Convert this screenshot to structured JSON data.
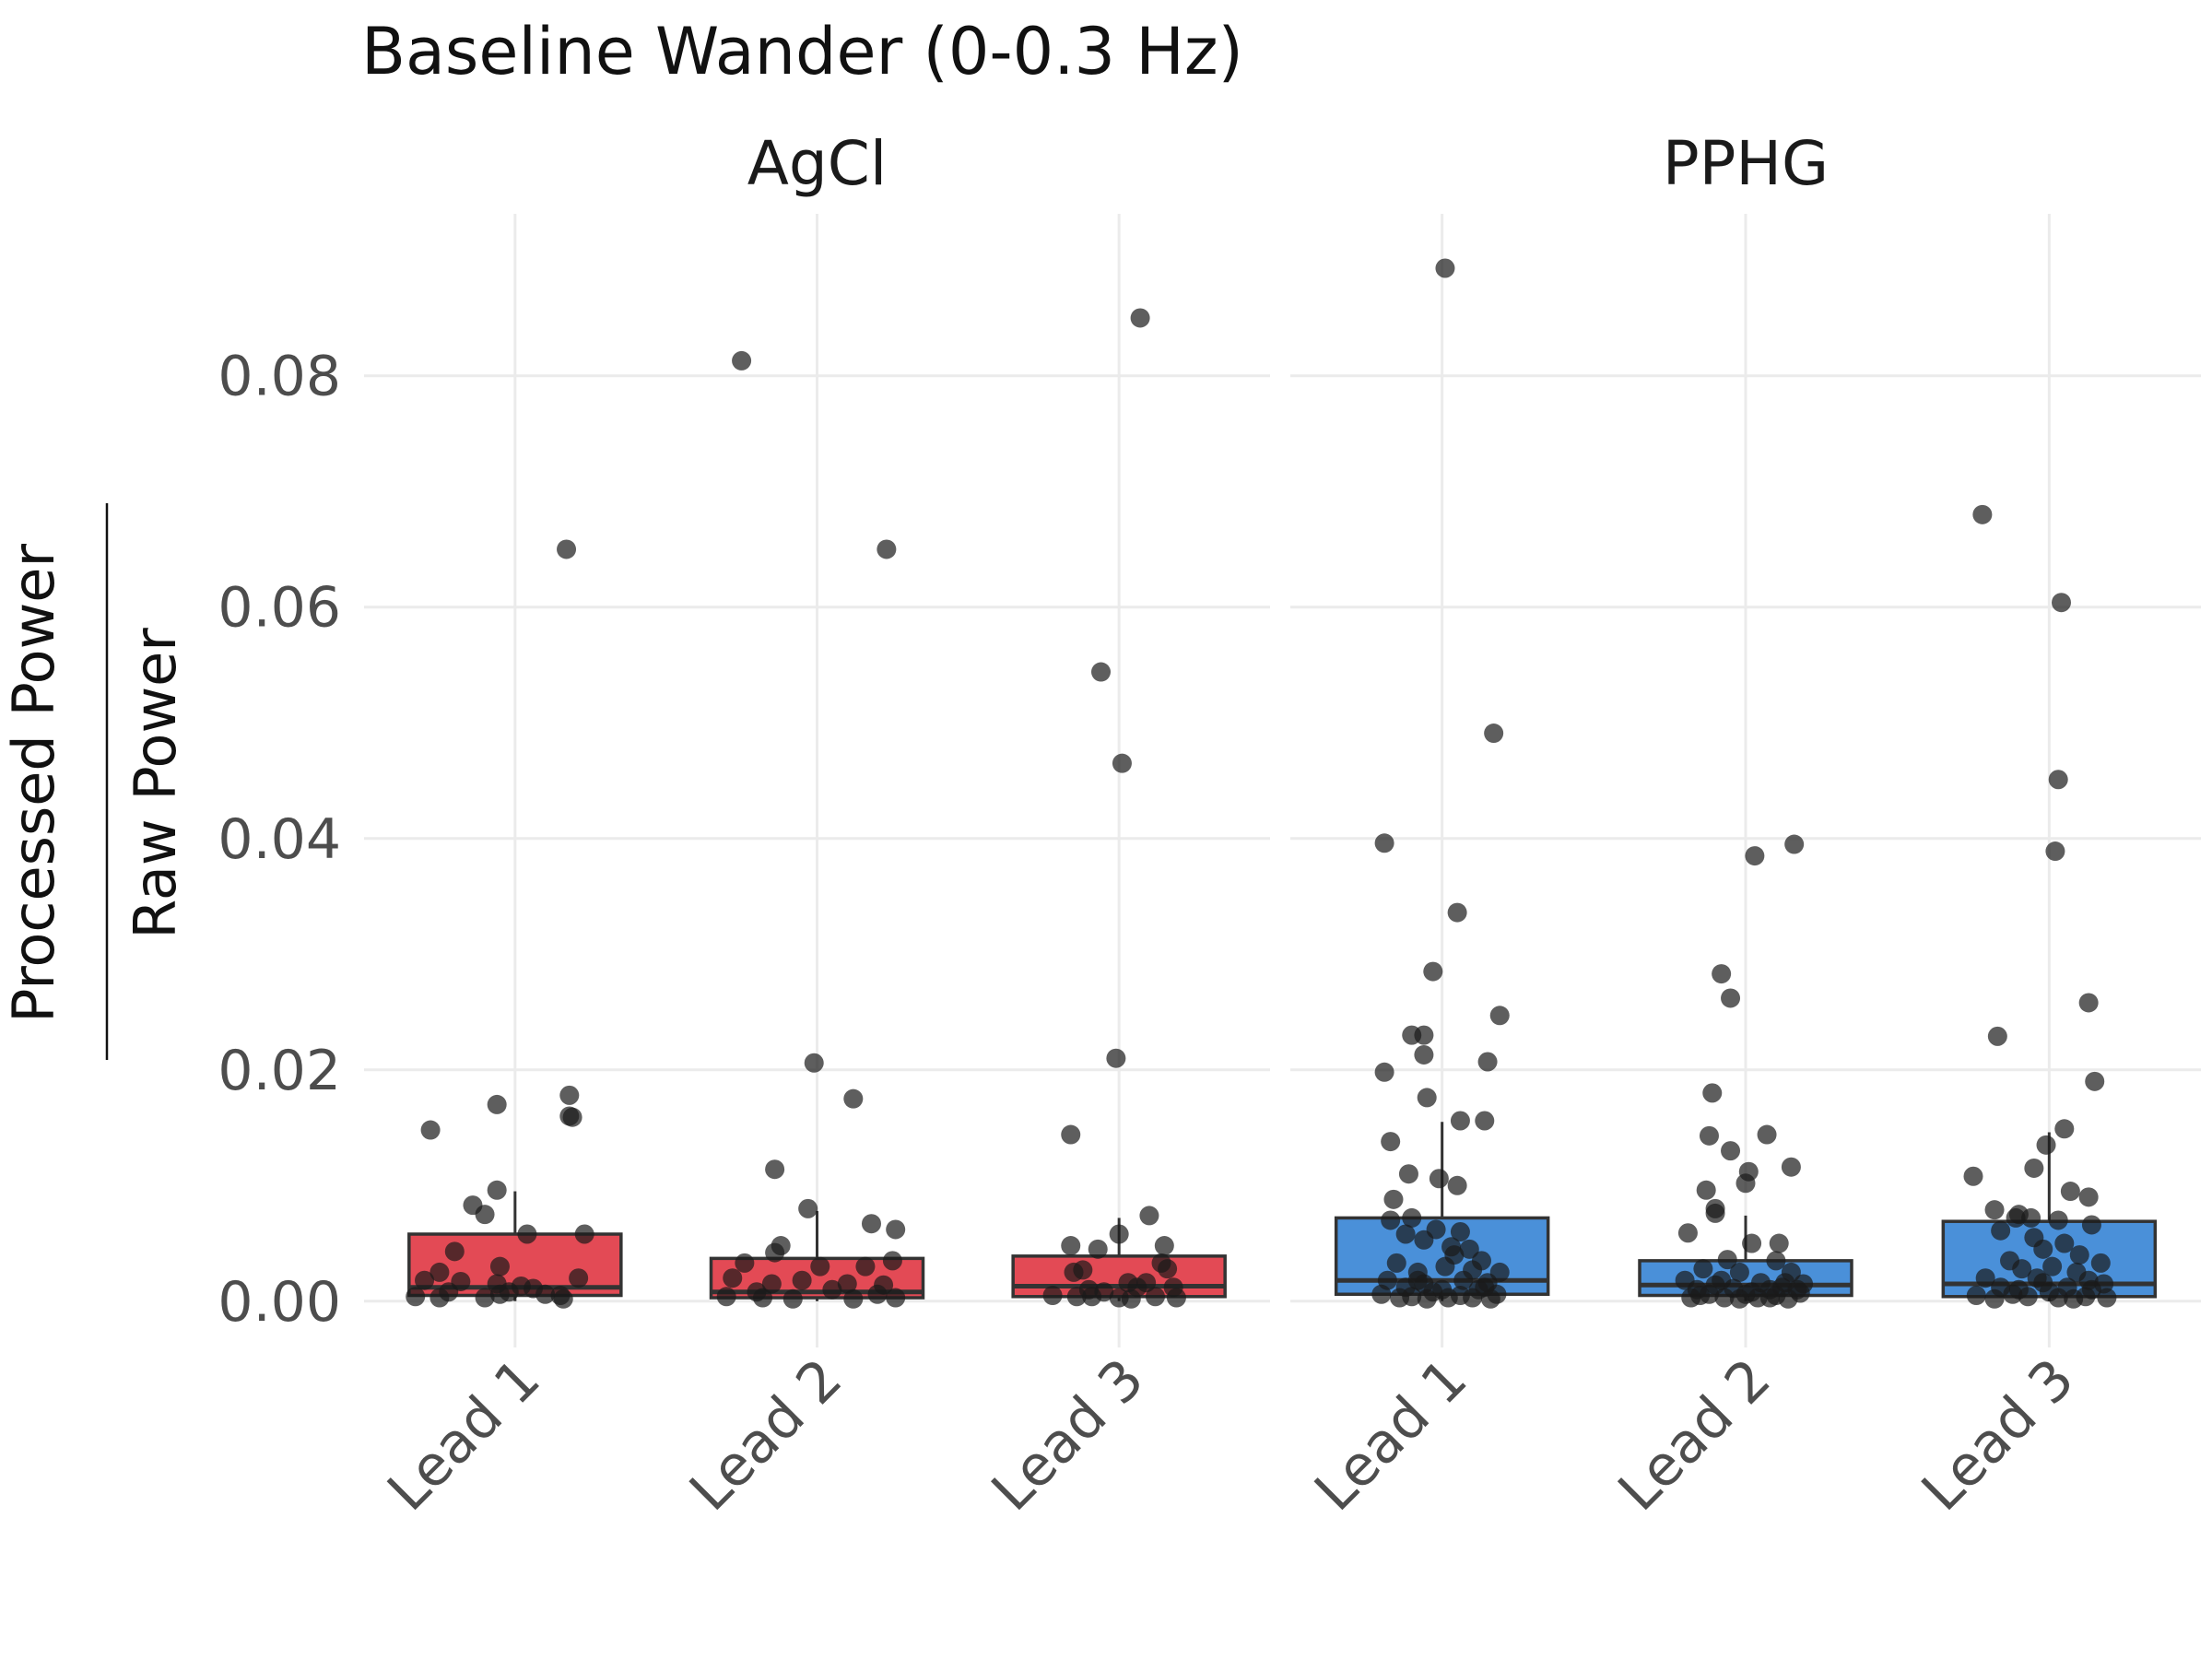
{
  "chart_data": {
    "type": "box",
    "title": "Baseline Wander (0-0.3 Hz)",
    "ylabel_numerator": "Processed Power",
    "ylabel_denominator": "Raw Power",
    "y_ticks": [
      0.0,
      0.02,
      0.04,
      0.06,
      0.08
    ],
    "y_tick_labels": [
      "0.00",
      "0.02",
      "0.04",
      "0.06",
      "0.08"
    ],
    "ylim": [
      -0.004,
      0.094
    ],
    "categories": [
      "Lead 1",
      "Lead 2",
      "Lead 3"
    ],
    "facets": [
      {
        "name": "AgCl",
        "color": "#e34a55",
        "boxes": [
          {
            "category": "Lead 1",
            "q1": 0.0005,
            "median": 0.0012,
            "q3": 0.0058,
            "whisker_low": 0.0,
            "whisker_high": 0.0095,
            "points": [
              [
                -0.28,
                0.0148
              ],
              [
                -0.06,
                0.017
              ],
              [
                0.18,
                0.0178
              ],
              [
                0.18,
                0.016
              ],
              [
                0.19,
                0.0159
              ],
              [
                -0.14,
                0.0083
              ],
              [
                -0.1,
                0.0075
              ],
              [
                -0.06,
                0.0096
              ],
              [
                0.04,
                0.0058
              ],
              [
                0.23,
                0.0058
              ],
              [
                -0.2,
                0.0043
              ],
              [
                -0.05,
                0.003
              ],
              [
                -0.25,
                0.0025
              ],
              [
                0.21,
                0.002
              ],
              [
                -0.3,
                0.0018
              ],
              [
                -0.18,
                0.0017
              ],
              [
                -0.06,
                0.0015
              ],
              [
                0.02,
                0.0013
              ],
              [
                0.06,
                0.0011
              ],
              [
                -0.22,
                0.0008
              ],
              [
                -0.02,
                0.0008
              ],
              [
                0.15,
                0.0005
              ],
              [
                -0.25,
                0.0003
              ],
              [
                -0.1,
                0.0003
              ],
              [
                0.1,
                0.0006
              ],
              [
                0.16,
                0.0002
              ],
              [
                -0.33,
                0.0004
              ],
              [
                -0.05,
                0.0006
              ],
              [
                0.17,
                0.065
              ]
            ]
          },
          {
            "category": "Lead 2",
            "q1": 0.0003,
            "median": 0.0008,
            "q3": 0.0037,
            "whisker_low": 0.0,
            "whisker_high": 0.0078,
            "points": [
              [
                -0.25,
                0.0813
              ],
              [
                0.23,
                0.065
              ],
              [
                -0.01,
                0.0206
              ],
              [
                0.12,
                0.0175
              ],
              [
                -0.14,
                0.0114
              ],
              [
                -0.03,
                0.008
              ],
              [
                0.18,
                0.0067
              ],
              [
                0.26,
                0.0062
              ],
              [
                -0.12,
                0.0048
              ],
              [
                -0.14,
                0.0042
              ],
              [
                -0.24,
                0.0033
              ],
              [
                0.01,
                0.003
              ],
              [
                0.16,
                0.003
              ],
              [
                0.25,
                0.0035
              ],
              [
                -0.28,
                0.002
              ],
              [
                -0.15,
                0.0015
              ],
              [
                -0.05,
                0.0018
              ],
              [
                0.1,
                0.0015
              ],
              [
                0.22,
                0.0014
              ],
              [
                -0.2,
                0.0008
              ],
              [
                0.05,
                0.001
              ],
              [
                0.2,
                0.0006
              ],
              [
                -0.3,
                0.0004
              ],
              [
                -0.08,
                0.0002
              ],
              [
                0.12,
                0.0002
              ],
              [
                0.26,
                0.0003
              ],
              [
                -0.18,
                0.0003
              ]
            ]
          },
          {
            "category": "Lead 3",
            "q1": 0.0004,
            "median": 0.0013,
            "q3": 0.0039,
            "whisker_low": 0.0,
            "whisker_high": 0.0072,
            "points": [
              [
                0.07,
                0.085
              ],
              [
                -0.06,
                0.0544
              ],
              [
                0.01,
                0.0465
              ],
              [
                -0.01,
                0.021
              ],
              [
                -0.16,
                0.0144
              ],
              [
                0.1,
                0.0074
              ],
              [
                0.0,
                0.0058
              ],
              [
                -0.16,
                0.0048
              ],
              [
                -0.07,
                0.0045
              ],
              [
                0.15,
                0.0048
              ],
              [
                -0.12,
                0.0027
              ],
              [
                -0.15,
                0.0025
              ],
              [
                0.14,
                0.0033
              ],
              [
                0.16,
                0.0028
              ],
              [
                0.03,
                0.0016
              ],
              [
                0.09,
                0.0016
              ],
              [
                0.06,
                0.0012
              ],
              [
                -0.1,
                0.001
              ],
              [
                -0.05,
                0.0008
              ],
              [
                0.18,
                0.0012
              ],
              [
                -0.22,
                0.0005
              ],
              [
                -0.14,
                0.0004
              ],
              [
                0.0,
                0.0003
              ],
              [
                0.04,
                0.0002
              ],
              [
                0.12,
                0.0004
              ],
              [
                0.19,
                0.0003
              ],
              [
                -0.09,
                0.0004
              ]
            ]
          }
        ]
      },
      {
        "name": "PPHG",
        "color": "#4a90d9",
        "boxes": [
          {
            "category": "Lead 1",
            "q1": 0.0006,
            "median": 0.0018,
            "q3": 0.0072,
            "whisker_low": 0.0,
            "whisker_high": 0.0155,
            "points": [
              [
                0.01,
                0.0893
              ],
              [
                0.17,
                0.0491
              ],
              [
                -0.19,
                0.0396
              ],
              [
                0.05,
                0.0336
              ],
              [
                -0.03,
                0.0285
              ],
              [
                0.19,
                0.0247
              ],
              [
                -0.1,
                0.023
              ],
              [
                -0.06,
                0.023
              ],
              [
                -0.06,
                0.0213
              ],
              [
                0.15,
                0.0207
              ],
              [
                -0.19,
                0.0198
              ],
              [
                -0.05,
                0.0176
              ],
              [
                0.06,
                0.0156
              ],
              [
                0.14,
                0.0156
              ],
              [
                -0.17,
                0.0138
              ],
              [
                -0.11,
                0.011
              ],
              [
                -0.01,
                0.0106
              ],
              [
                0.05,
                0.01
              ],
              [
                -0.16,
                0.0088
              ],
              [
                -0.1,
                0.0072
              ],
              [
                -0.17,
                0.007
              ],
              [
                -0.12,
                0.0058
              ],
              [
                -0.02,
                0.0062
              ],
              [
                0.06,
                0.006
              ],
              [
                -0.06,
                0.0053
              ],
              [
                0.03,
                0.0047
              ],
              [
                0.09,
                0.0045
              ],
              [
                0.04,
                0.004
              ],
              [
                0.13,
                0.0035
              ],
              [
                -0.15,
                0.0033
              ],
              [
                0.01,
                0.003
              ],
              [
                -0.08,
                0.0025
              ],
              [
                0.1,
                0.0027
              ],
              [
                0.19,
                0.0025
              ],
              [
                -0.18,
                0.0018
              ],
              [
                -0.06,
                0.0015
              ],
              [
                0.07,
                0.0018
              ],
              [
                0.15,
                0.0016
              ],
              [
                -0.12,
                0.0012
              ],
              [
                0.0,
                0.001
              ],
              [
                0.12,
                0.001
              ],
              [
                -0.2,
                0.0006
              ],
              [
                -0.03,
                0.0008
              ],
              [
                0.06,
                0.0005
              ],
              [
                0.18,
                0.0006
              ],
              [
                -0.14,
                0.0003
              ],
              [
                -0.05,
                0.0002
              ],
              [
                0.1,
                0.0003
              ],
              [
                0.16,
                0.0002
              ],
              [
                -0.1,
                0.0004
              ],
              [
                0.02,
                0.0003
              ],
              [
                0.14,
                0.0012
              ],
              [
                -0.08,
                0.0018
              ]
            ]
          },
          {
            "category": "Lead 2",
            "q1": 0.0005,
            "median": 0.0014,
            "q3": 0.0035,
            "whisker_low": 0.0,
            "whisker_high": 0.0074,
            "points": [
              [
                0.03,
                0.0385
              ],
              [
                0.16,
                0.0395
              ],
              [
                -0.08,
                0.0283
              ],
              [
                -0.05,
                0.0262
              ],
              [
                -0.11,
                0.018
              ],
              [
                -0.12,
                0.0143
              ],
              [
                -0.05,
                0.013
              ],
              [
                0.07,
                0.0144
              ],
              [
                -0.13,
                0.0096
              ],
              [
                0.0,
                0.0102
              ],
              [
                0.01,
                0.0112
              ],
              [
                0.15,
                0.0116
              ],
              [
                -0.1,
                0.008
              ],
              [
                -0.1,
                0.0076
              ],
              [
                -0.19,
                0.0059
              ],
              [
                0.02,
                0.005
              ],
              [
                0.11,
                0.005
              ],
              [
                -0.06,
                0.0036
              ],
              [
                0.1,
                0.0035
              ],
              [
                -0.14,
                0.0028
              ],
              [
                -0.02,
                0.0025
              ],
              [
                0.15,
                0.0025
              ],
              [
                -0.2,
                0.0018
              ],
              [
                -0.08,
                0.0018
              ],
              [
                0.05,
                0.0016
              ],
              [
                0.13,
                0.0016
              ],
              [
                0.19,
                0.0015
              ],
              [
                -0.16,
                0.001
              ],
              [
                -0.04,
                0.0011
              ],
              [
                0.08,
                0.001
              ],
              [
                0.17,
                0.001
              ],
              [
                -0.12,
                0.0006
              ],
              [
                0.0,
                0.0006
              ],
              [
                0.1,
                0.0005
              ],
              [
                0.18,
                0.0007
              ],
              [
                -0.18,
                0.0003
              ],
              [
                -0.07,
                0.0003
              ],
              [
                0.04,
                0.0003
              ],
              [
                0.14,
                0.0002
              ],
              [
                -0.02,
                0.0002
              ],
              [
                0.08,
                0.0003
              ],
              [
                -0.15,
                0.0005
              ],
              [
                0.12,
                0.0012
              ],
              [
                -0.1,
                0.0014
              ],
              [
                0.02,
                0.0008
              ]
            ]
          },
          {
            "category": "Lead 3",
            "q1": 0.0004,
            "median": 0.0015,
            "q3": 0.0069,
            "whisker_low": 0.0,
            "whisker_high": 0.0146,
            "points": [
              [
                -0.22,
                0.068
              ],
              [
                0.04,
                0.0604
              ],
              [
                0.03,
                0.0451
              ],
              [
                0.02,
                0.0389
              ],
              [
                0.13,
                0.0258
              ],
              [
                -0.17,
                0.0229
              ],
              [
                0.15,
                0.019
              ],
              [
                0.05,
                0.0149
              ],
              [
                -0.01,
                0.0135
              ],
              [
                -0.05,
                0.0115
              ],
              [
                -0.25,
                0.0108
              ],
              [
                0.13,
                0.009
              ],
              [
                0.07,
                0.0095
              ],
              [
                -0.18,
                0.0079
              ],
              [
                -0.1,
                0.0075
              ],
              [
                -0.06,
                0.0072
              ],
              [
                -0.11,
                0.0072
              ],
              [
                0.03,
                0.007
              ],
              [
                0.14,
                0.0066
              ],
              [
                -0.16,
                0.0061
              ],
              [
                -0.05,
                0.0055
              ],
              [
                0.05,
                0.005
              ],
              [
                -0.02,
                0.0045
              ],
              [
                0.1,
                0.004
              ],
              [
                -0.13,
                0.0035
              ],
              [
                0.17,
                0.0033
              ],
              [
                -0.09,
                0.0028
              ],
              [
                0.01,
                0.003
              ],
              [
                0.09,
                0.0025
              ],
              [
                -0.21,
                0.002
              ],
              [
                -0.04,
                0.002
              ],
              [
                0.13,
                0.0018
              ],
              [
                0.18,
                0.0015
              ],
              [
                -0.16,
                0.0012
              ],
              [
                0.06,
                0.0012
              ],
              [
                -0.1,
                0.001
              ],
              [
                0.0,
                0.0008
              ],
              [
                0.14,
                0.001
              ],
              [
                -0.24,
                0.0005
              ],
              [
                -0.07,
                0.0004
              ],
              [
                0.03,
                0.0003
              ],
              [
                0.12,
                0.0004
              ],
              [
                -0.18,
                0.0002
              ],
              [
                0.08,
                0.0002
              ],
              [
                0.19,
                0.0003
              ],
              [
                -0.12,
                0.0006
              ],
              [
                -0.02,
                0.0016
              ]
            ]
          }
        ]
      }
    ]
  }
}
